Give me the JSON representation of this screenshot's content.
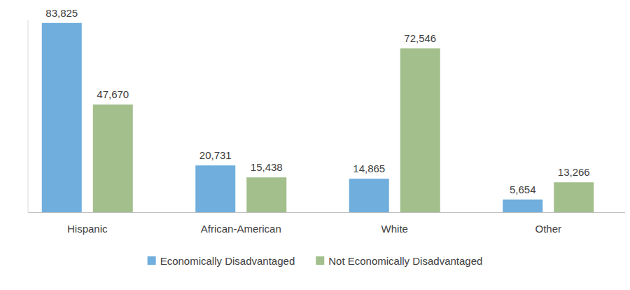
{
  "chart_data": {
    "type": "bar",
    "categories": [
      "Hispanic",
      "African-American",
      "White",
      "Other"
    ],
    "series": [
      {
        "name": "Economically Disadvantaged",
        "color": "#6FAEDD",
        "values": [
          83825,
          20731,
          14865,
          5654
        ],
        "value_labels": [
          "83,825",
          "20,731",
          "14,865",
          "5,654"
        ]
      },
      {
        "name": "Not Economically Disadvantaged",
        "color": "#A3BF8C",
        "values": [
          47670,
          15438,
          72546,
          13266
        ],
        "value_labels": [
          "47,670",
          "15,438",
          "72,546",
          "13,266"
        ]
      }
    ],
    "ylim": [
      0,
      85000
    ],
    "grid": false,
    "legend": "bottom",
    "data_labels": true,
    "tick_labels": "x"
  }
}
